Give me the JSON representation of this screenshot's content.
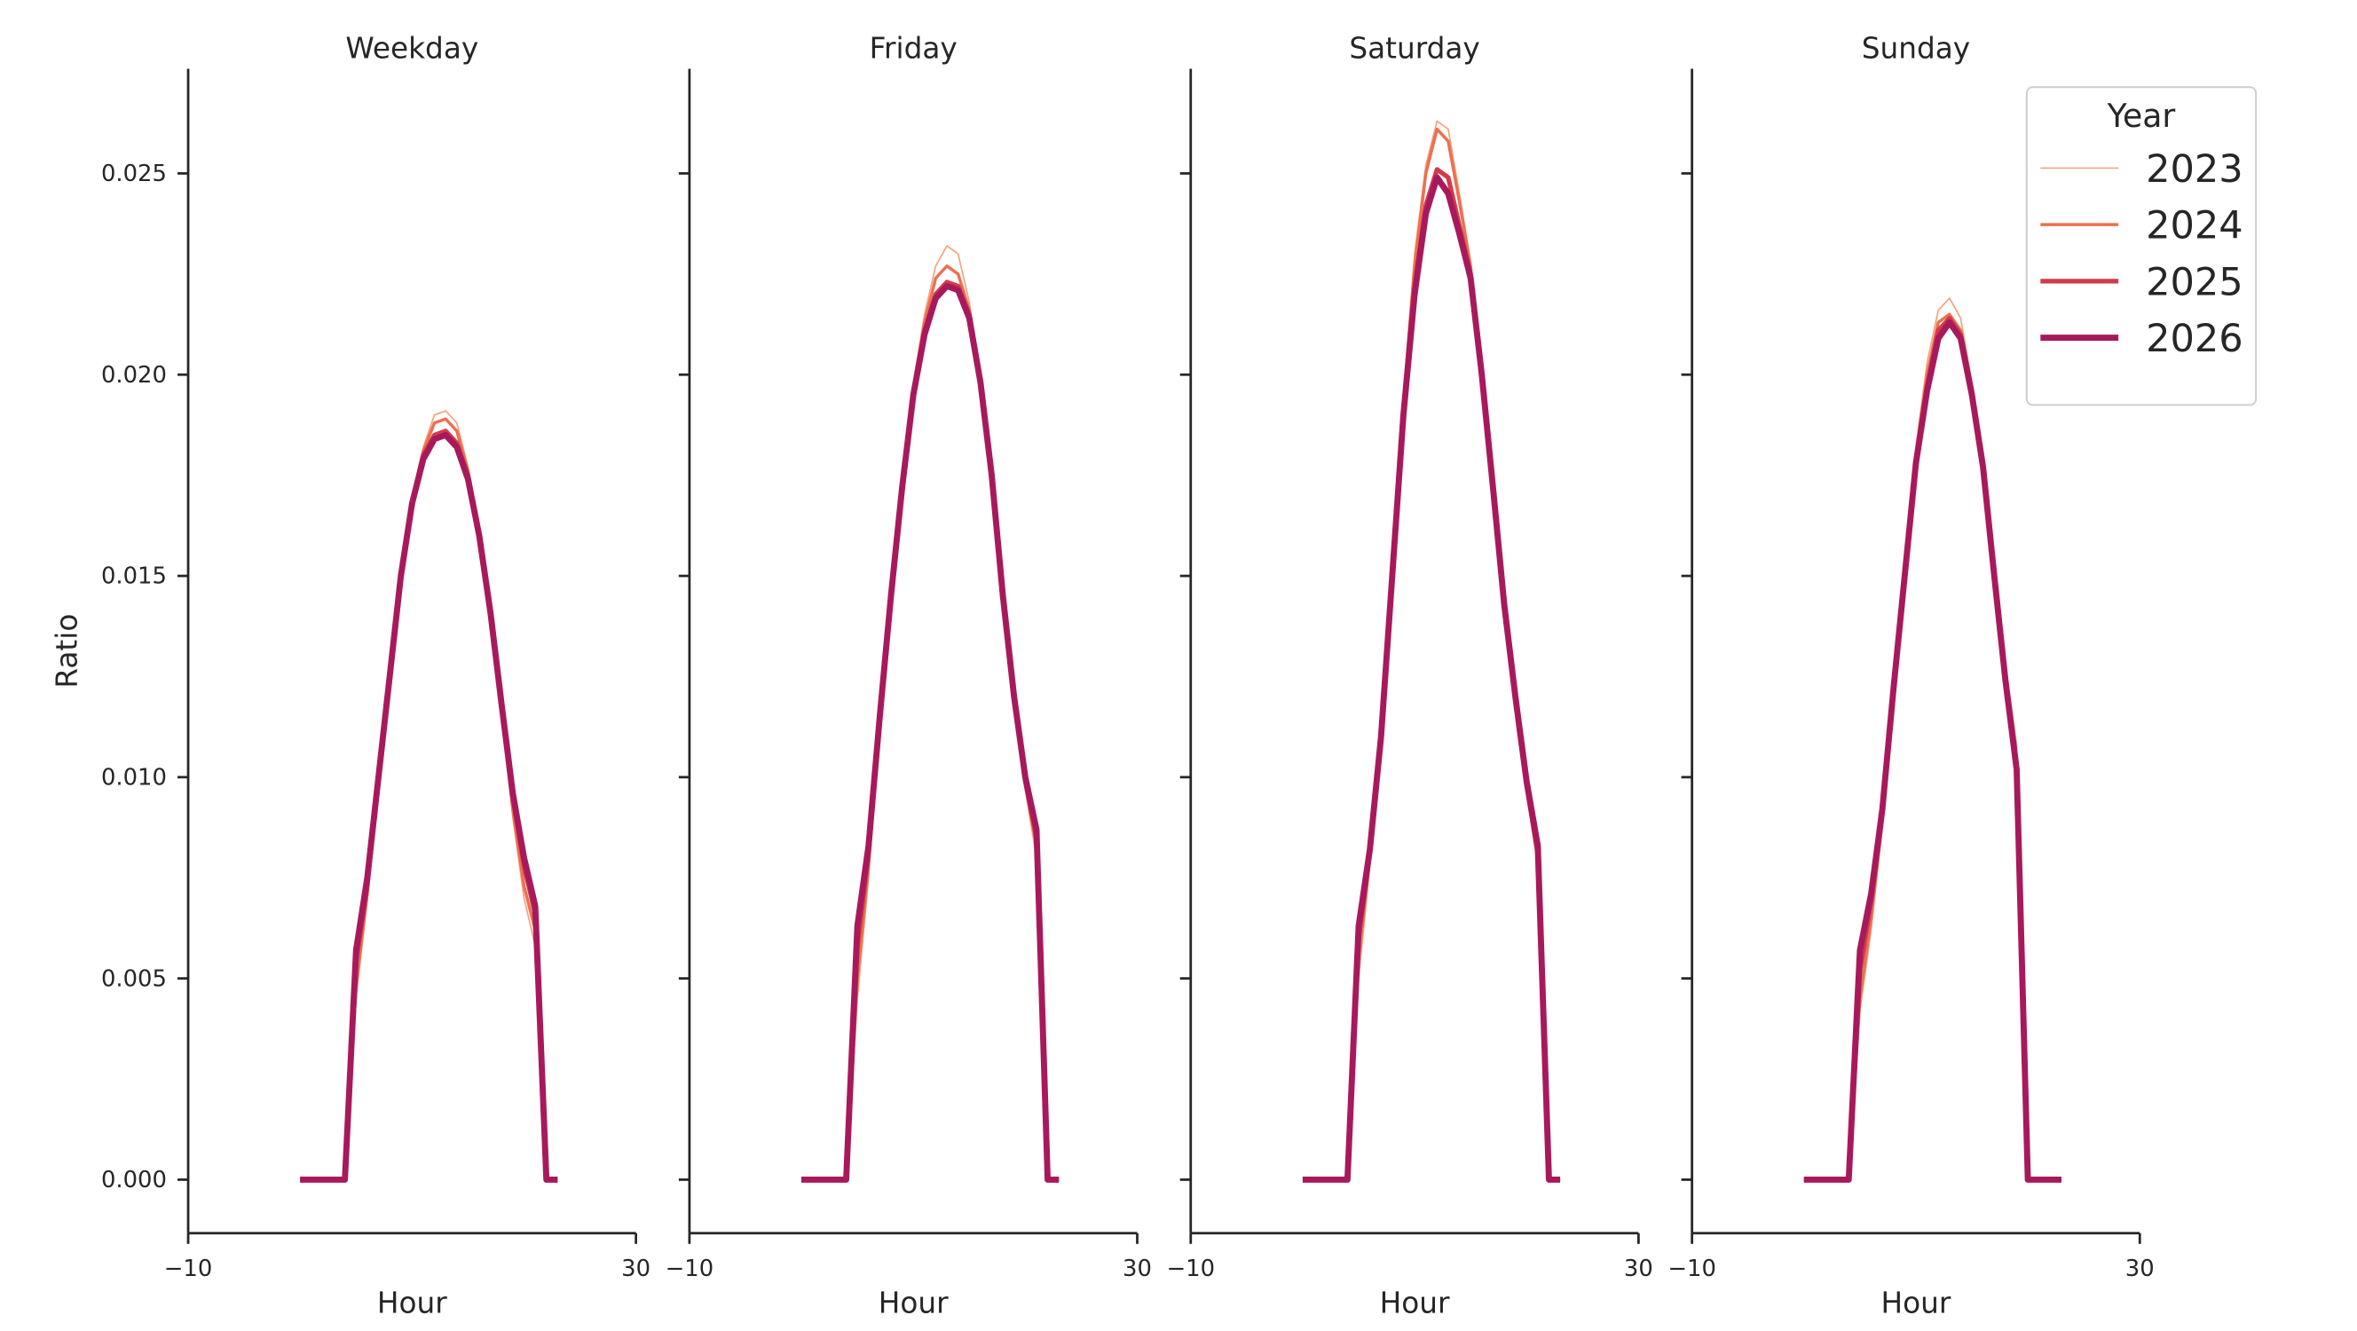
{
  "chart_data": [
    {
      "type": "line",
      "title": "Weekday",
      "x_label": "Hour",
      "y_label": "Ratio",
      "x": [
        0,
        1,
        2,
        3,
        4,
        5,
        6,
        7,
        8,
        9,
        10,
        11,
        12,
        13,
        14,
        15,
        16,
        17,
        18,
        19,
        20,
        21,
        22,
        23
      ],
      "xlim": [
        -10,
        30
      ],
      "xticks": [
        {
          "value": -10,
          "label": "−10"
        },
        30
      ],
      "ylim": [
        -0.00133,
        0.0276
      ],
      "yticks": [
        {
          "value": 0,
          "label": "0.000"
        },
        0.005,
        {
          "value": 0.01,
          "label": "0.010"
        },
        0.015,
        {
          "value": 0.02,
          "label": "0.020"
        },
        0.025
      ],
      "series": [
        {
          "color": "#f3a481",
          "width": 1,
          "values": [
            0,
            0,
            0,
            0,
            0,
            0.0045,
            0.007,
            0.0098,
            0.0125,
            0.015,
            0.017,
            0.0182,
            0.019,
            0.0191,
            0.0188,
            0.0177,
            0.0161,
            0.014,
            0.0115,
            0.009,
            0.007,
            0.0058,
            0,
            0
          ]
        },
        {
          "color": "#eb7150",
          "width": 2,
          "values": [
            0,
            0,
            0,
            0,
            0,
            0.0048,
            0.0071,
            0.0099,
            0.0125,
            0.015,
            0.0169,
            0.0181,
            0.0188,
            0.0189,
            0.0186,
            0.0176,
            0.0161,
            0.014,
            0.0116,
            0.0092,
            0.0073,
            0.0062,
            0,
            0
          ]
        },
        {
          "color": "#d13b4a",
          "width": 3,
          "values": [
            0,
            0,
            0,
            0,
            0,
            0.0054,
            0.0073,
            0.01,
            0.0125,
            0.015,
            0.0168,
            0.018,
            0.0185,
            0.0186,
            0.0183,
            0.0175,
            0.016,
            0.0141,
            0.0117,
            0.0095,
            0.0078,
            0.0066,
            0,
            0
          ]
        },
        {
          "color": "#a8195c",
          "width": 4,
          "values": [
            0,
            0,
            0,
            0,
            0,
            0.0057,
            0.0075,
            0.01,
            0.0125,
            0.015,
            0.0168,
            0.0179,
            0.0184,
            0.0185,
            0.0182,
            0.0174,
            0.016,
            0.0141,
            0.0118,
            0.0096,
            0.008,
            0.0068,
            0,
            0
          ]
        }
      ]
    },
    {
      "type": "line",
      "title": "Friday",
      "x_label": "Hour",
      "x": [
        0,
        1,
        2,
        3,
        4,
        5,
        6,
        7,
        8,
        9,
        10,
        11,
        12,
        13,
        14,
        15,
        16,
        17,
        18,
        19,
        20,
        21,
        22,
        23
      ],
      "xlim": [
        -10,
        30
      ],
      "xticks": [
        {
          "value": -10,
          "label": "−10"
        },
        30
      ],
      "ylim": [
        -0.00133,
        0.0276
      ],
      "yticks": [
        0,
        0.005,
        0.01,
        0.015,
        0.02,
        0.025
      ],
      "series": [
        {
          "color": "#f3a481",
          "width": 1,
          "values": [
            0,
            0,
            0,
            0,
            0,
            0.0045,
            0.0075,
            0.0113,
            0.0145,
            0.0173,
            0.0198,
            0.0215,
            0.0227,
            0.0232,
            0.023,
            0.0218,
            0.0199,
            0.0175,
            0.0145,
            0.0118,
            0.0097,
            0.008,
            0,
            0
          ]
        },
        {
          "color": "#eb7150",
          "width": 2,
          "values": [
            0,
            0,
            0,
            0,
            0,
            0.005,
            0.0078,
            0.0114,
            0.0145,
            0.0172,
            0.0196,
            0.0213,
            0.0224,
            0.0227,
            0.0225,
            0.0216,
            0.0198,
            0.0175,
            0.0145,
            0.0119,
            0.0098,
            0.0083,
            0,
            0
          ]
        },
        {
          "color": "#d13b4a",
          "width": 3,
          "values": [
            0,
            0,
            0,
            0,
            0,
            0.0058,
            0.0081,
            0.0115,
            0.0145,
            0.0172,
            0.0195,
            0.0211,
            0.022,
            0.0223,
            0.0222,
            0.0215,
            0.0198,
            0.0175,
            0.0145,
            0.012,
            0.0099,
            0.0085,
            0,
            0
          ]
        },
        {
          "color": "#a8195c",
          "width": 4,
          "values": [
            0,
            0,
            0,
            0,
            0,
            0.0063,
            0.0083,
            0.0115,
            0.0145,
            0.0172,
            0.0195,
            0.021,
            0.0219,
            0.0222,
            0.0221,
            0.0214,
            0.0198,
            0.0175,
            0.0145,
            0.012,
            0.01,
            0.0087,
            0,
            0
          ]
        }
      ]
    },
    {
      "type": "line",
      "title": "Saturday",
      "x_label": "Hour",
      "x": [
        0,
        1,
        2,
        3,
        4,
        5,
        6,
        7,
        8,
        9,
        10,
        11,
        12,
        13,
        14,
        15,
        16,
        17,
        18,
        19,
        20,
        21,
        22,
        23
      ],
      "xlim": [
        -10,
        30
      ],
      "xticks": [
        {
          "value": -10,
          "label": "−10"
        },
        30
      ],
      "ylim": [
        -0.00133,
        0.0276
      ],
      "yticks": [
        0,
        0.005,
        0.01,
        0.015,
        0.02,
        0.025
      ],
      "series": [
        {
          "color": "#f3a481",
          "width": 1,
          "values": [
            0,
            0,
            0,
            0,
            0,
            0.005,
            0.0078,
            0.011,
            0.0152,
            0.0195,
            0.023,
            0.0252,
            0.0263,
            0.0261,
            0.0245,
            0.0228,
            0.0201,
            0.0172,
            0.0143,
            0.0118,
            0.0096,
            0.0078,
            0,
            0
          ]
        },
        {
          "color": "#eb7150",
          "width": 2,
          "values": [
            0,
            0,
            0,
            0,
            0,
            0.0055,
            0.008,
            0.011,
            0.0151,
            0.0193,
            0.0227,
            0.025,
            0.0261,
            0.0258,
            0.0243,
            0.0227,
            0.0201,
            0.0172,
            0.0143,
            0.0119,
            0.0097,
            0.008,
            0,
            0
          ]
        },
        {
          "color": "#d13b4a",
          "width": 3,
          "values": [
            0,
            0,
            0,
            0,
            0,
            0.006,
            0.0081,
            0.011,
            0.015,
            0.0191,
            0.0222,
            0.0242,
            0.0251,
            0.0249,
            0.0237,
            0.0225,
            0.02,
            0.0172,
            0.0143,
            0.012,
            0.0098,
            0.0081,
            0,
            0
          ]
        },
        {
          "color": "#a8195c",
          "width": 4,
          "values": [
            0,
            0,
            0,
            0,
            0,
            0.0063,
            0.0082,
            0.011,
            0.015,
            0.019,
            0.022,
            0.024,
            0.0249,
            0.0245,
            0.0235,
            0.0224,
            0.02,
            0.0172,
            0.0143,
            0.012,
            0.0099,
            0.0083,
            0,
            0
          ]
        }
      ]
    },
    {
      "type": "line",
      "title": "Sunday",
      "x_label": "Hour",
      "x": [
        0,
        1,
        2,
        3,
        4,
        5,
        6,
        7,
        8,
        9,
        10,
        11,
        12,
        13,
        14,
        15,
        16,
        17,
        18,
        19,
        20,
        21,
        22,
        23
      ],
      "xlim": [
        -10,
        30
      ],
      "xticks": [
        {
          "value": -10,
          "label": "−10"
        },
        30
      ],
      "ylim": [
        -0.00133,
        0.0276
      ],
      "yticks": [
        0,
        0.005,
        0.01,
        0.015,
        0.02,
        0.025
      ],
      "legend": {
        "title": "Year",
        "loc": "upper right"
      },
      "series": [
        {
          "name": "2023",
          "color": "#f3a481",
          "width": 1,
          "values": [
            0,
            0,
            0,
            0,
            0,
            0.0042,
            0.0062,
            0.0088,
            0.0122,
            0.0152,
            0.0182,
            0.0203,
            0.0216,
            0.0219,
            0.0214,
            0.0198,
            0.018,
            0.0155,
            0.0128,
            0.0108,
            0,
            0,
            0,
            0
          ]
        },
        {
          "name": "2024",
          "color": "#eb7150",
          "width": 2,
          "values": [
            0,
            0,
            0,
            0,
            0,
            0.0045,
            0.0065,
            0.0089,
            0.0122,
            0.0151,
            0.018,
            0.02,
            0.0213,
            0.0215,
            0.0211,
            0.0197,
            0.0179,
            0.0153,
            0.0126,
            0.0105,
            0,
            0,
            0,
            0
          ]
        },
        {
          "name": "2025",
          "color": "#d13b4a",
          "width": 3,
          "values": [
            0,
            0,
            0,
            0,
            0,
            0.0052,
            0.0069,
            0.0091,
            0.0122,
            0.015,
            0.0179,
            0.0197,
            0.0211,
            0.0214,
            0.021,
            0.0196,
            0.0178,
            0.0151,
            0.0125,
            0.0103,
            0,
            0,
            0,
            0
          ]
        },
        {
          "name": "2026",
          "color": "#a8195c",
          "width": 4,
          "values": [
            0,
            0,
            0,
            0,
            0,
            0.0057,
            0.0071,
            0.0092,
            0.0122,
            0.015,
            0.0178,
            0.0196,
            0.0209,
            0.0213,
            0.0209,
            0.0195,
            0.0177,
            0.015,
            0.0124,
            0.0102,
            0,
            0,
            0,
            0
          ]
        }
      ]
    }
  ]
}
